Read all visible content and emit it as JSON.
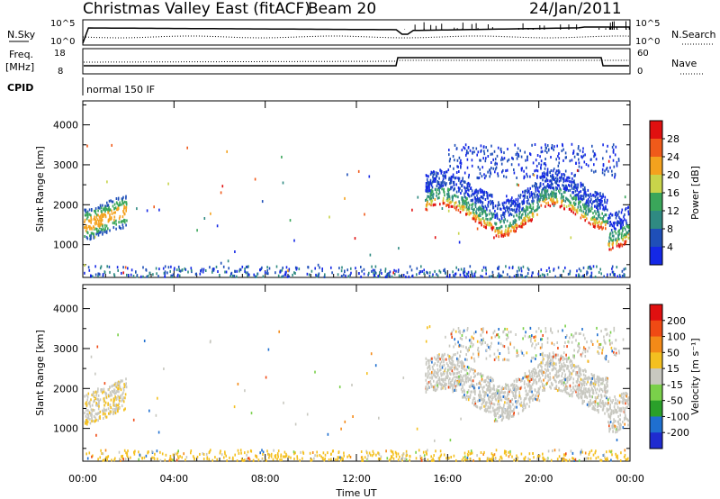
{
  "header": {
    "title": "Christmas Valley East (fitACF)",
    "beam": "Beam 20",
    "date": "24/Jan/2011"
  },
  "status_panels": {
    "nsky_label": "N.Sky",
    "nsearch_label": "N.Search",
    "nsky_ticks": [
      "10^5",
      "10^0"
    ],
    "nsearch_ticks": [
      "10^5",
      "10^0"
    ],
    "freq_label_1": "Freq.",
    "freq_label_2": "[MHz]",
    "freq_ticks": [
      "18",
      "8"
    ],
    "nave_label": "Nave",
    "nave_ticks": [
      "60",
      "0"
    ],
    "cpid_label": "CPID",
    "cpid_value": "normal 150 IF"
  },
  "chart_data": [
    {
      "type": "heatmap",
      "name": "power",
      "ylabel": "Slant Range [km]",
      "xlabel": "Time UT",
      "x_ticks": [
        "00:00",
        "04:00",
        "08:00",
        "12:00",
        "16:00",
        "20:00",
        "00:00"
      ],
      "y_ticks": [
        1000,
        2000,
        3000,
        4000
      ],
      "ylim": [
        180,
        4600
      ],
      "xlim_hours": [
        0,
        24
      ],
      "colorbar": {
        "label": "Power [dB]",
        "ticks": [
          "4",
          "8",
          "12",
          "16",
          "20",
          "24",
          "28"
        ],
        "colors": [
          "#1428e6",
          "#1f4fb8",
          "#2f8a82",
          "#3aa65a",
          "#c8d44a",
          "#f4a21e",
          "#f05a1a",
          "#e01010"
        ]
      },
      "features": [
        {
          "time_range_h": [
            0.0,
            1.9
          ],
          "range_km": [
            1150,
            2350
          ],
          "note": ""
        },
        {
          "time_range_h": [
            15.0,
            23.9
          ],
          "range_km": [
            1000,
            3500
          ],
          "note": ""
        },
        {
          "time_range_h": [
            0.0,
            24.0
          ],
          "range_km": [
            180,
            450
          ],
          "note": ""
        }
      ]
    },
    {
      "type": "heatmap",
      "name": "velocity",
      "ylabel": "Slant Range [km]",
      "xlabel": "Time UT",
      "x_ticks": [
        "00:00",
        "04:00",
        "08:00",
        "12:00",
        "16:00",
        "20:00",
        "00:00"
      ],
      "y_ticks": [
        1000,
        2000,
        3000,
        4000
      ],
      "ylim": [
        180,
        4600
      ],
      "xlim_hours": [
        0,
        24
      ],
      "colorbar": {
        "label": "Velocity [m s^-1]",
        "ticks": [
          "200",
          "100",
          "50",
          "15",
          "-15",
          "-50",
          "-100",
          "-200"
        ],
        "colors": [
          "#1f2bd0",
          "#1f6fd0",
          "#2aa02a",
          "#7ad04a",
          "#c8c8c0",
          "#f4c020",
          "#f48a18",
          "#f04a14",
          "#e01010"
        ]
      }
    }
  ]
}
